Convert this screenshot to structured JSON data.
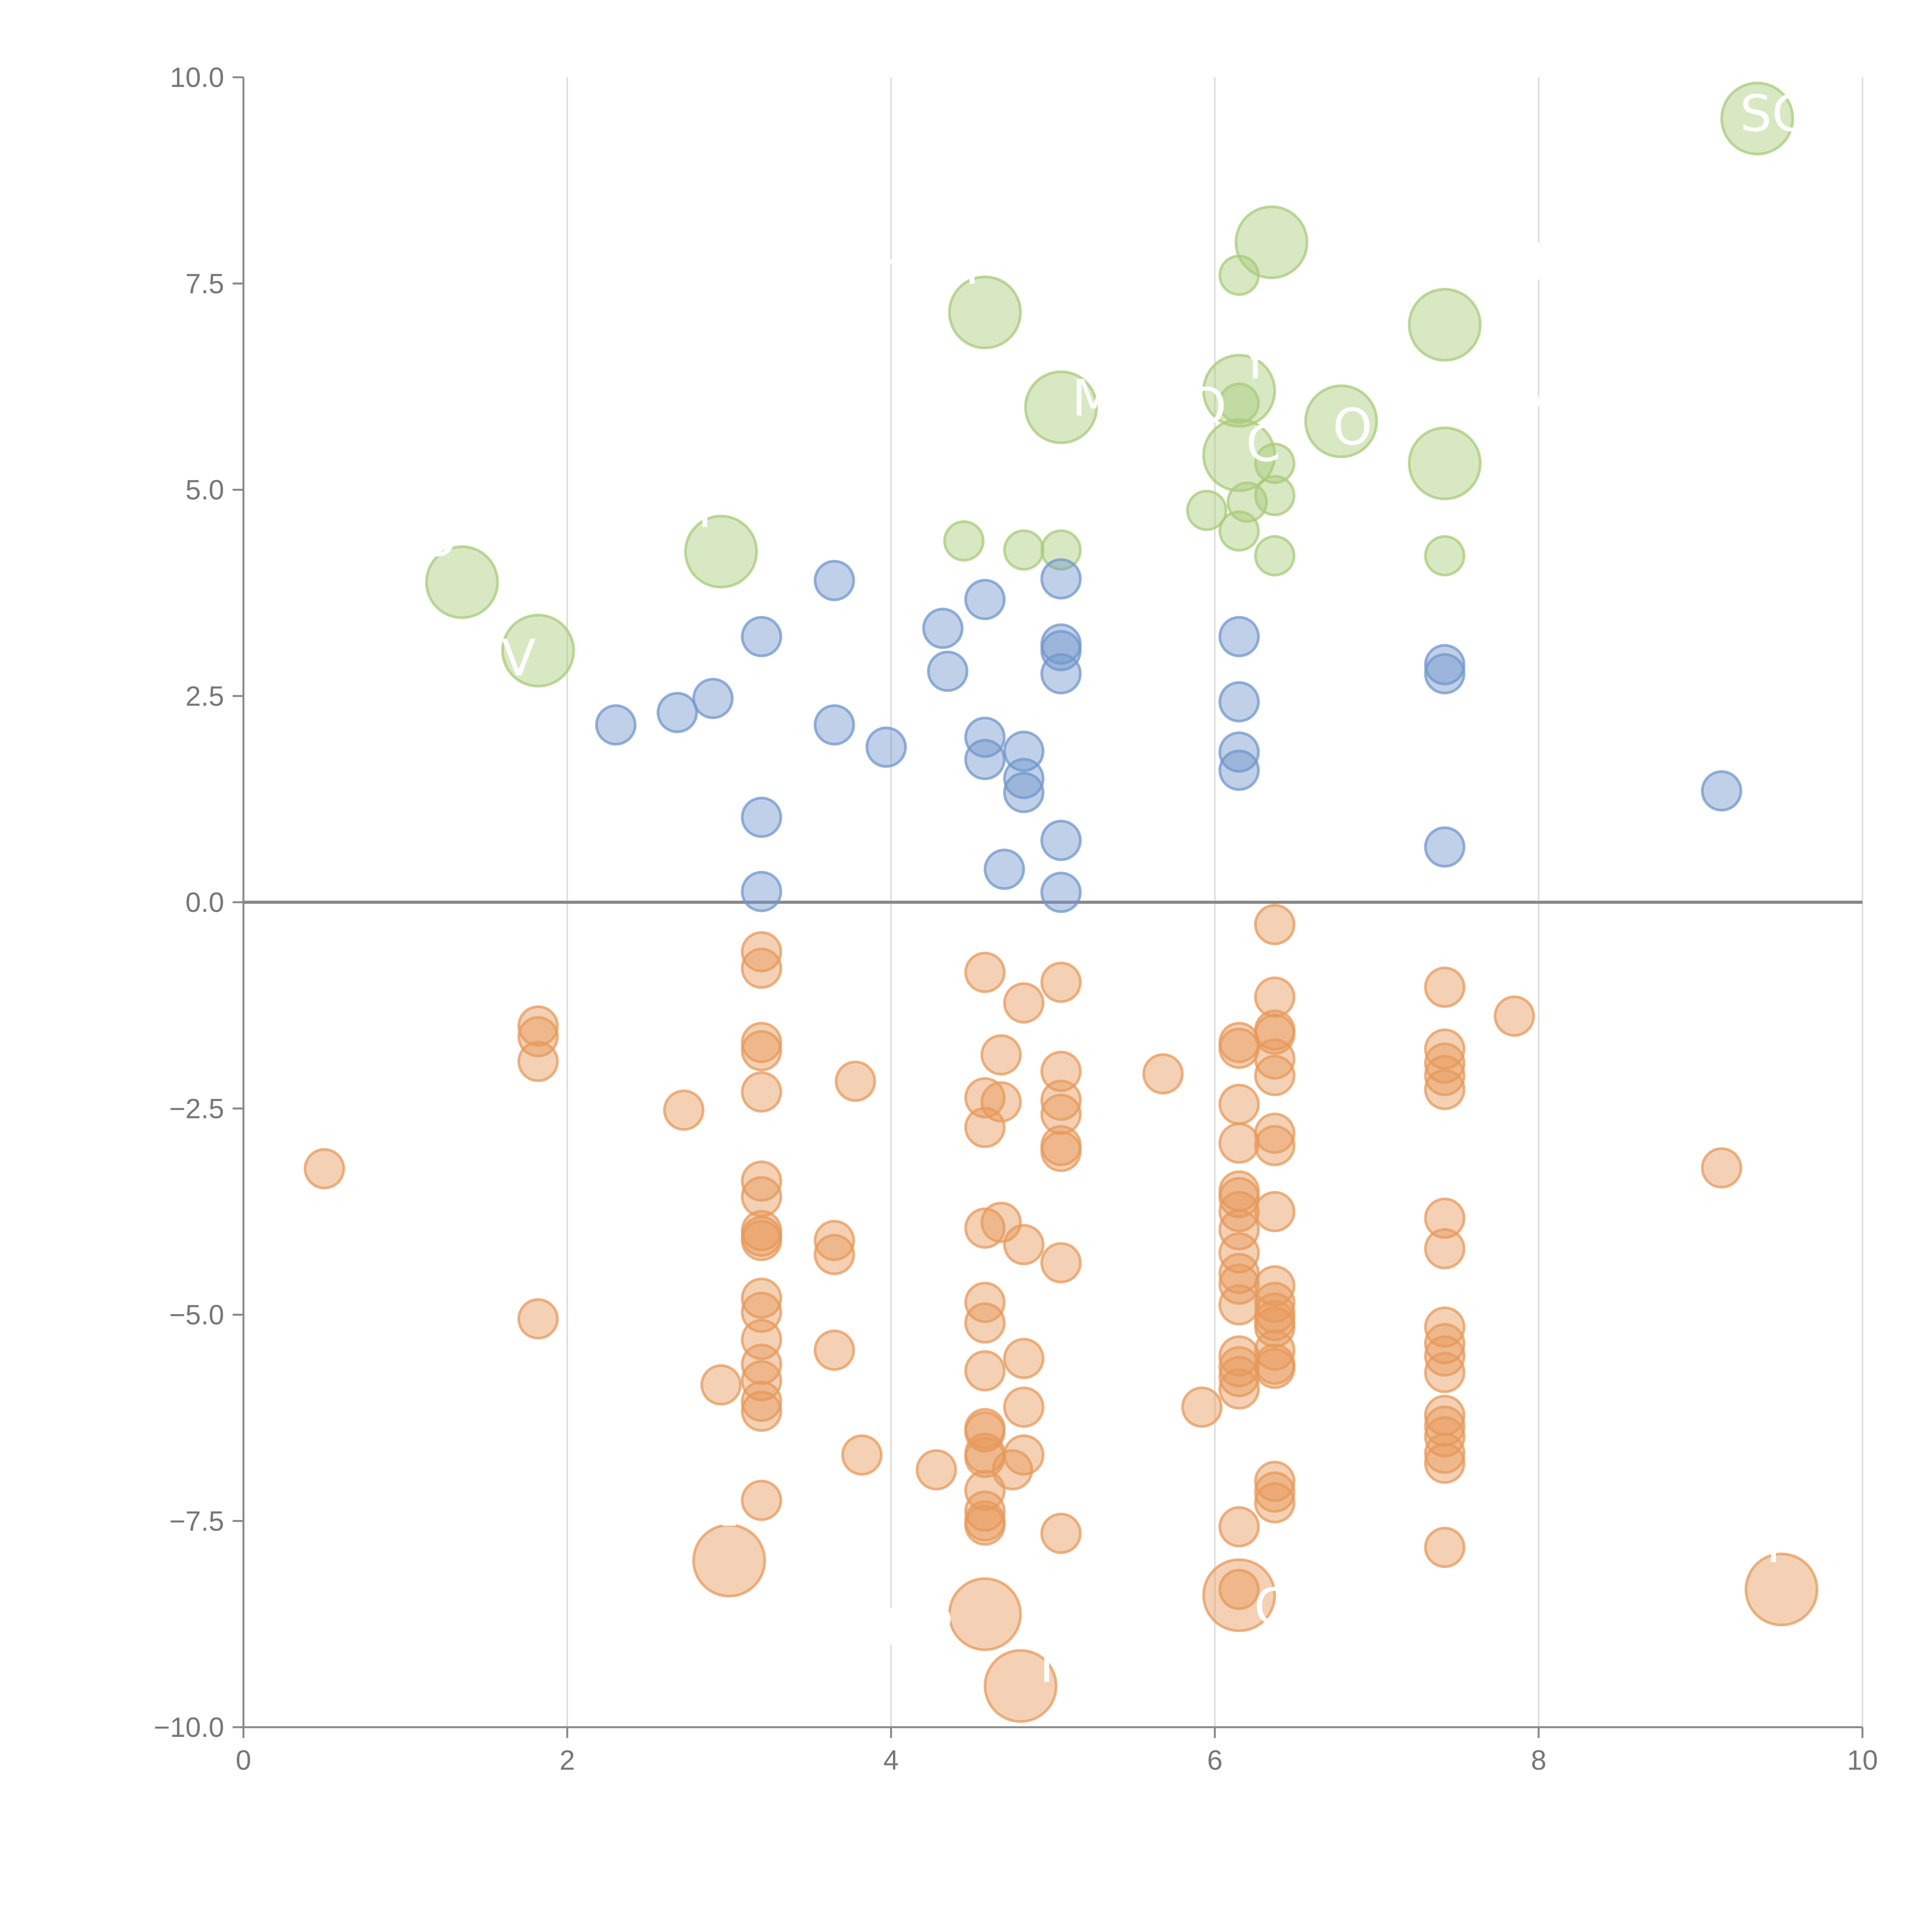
{
  "chart_data": {
    "type": "scatter",
    "title": "",
    "xlabel": "",
    "ylabel": "",
    "xlim": [
      0,
      10
    ],
    "ylim": [
      -10,
      10
    ],
    "x_ticks": [
      0,
      2,
      4,
      6,
      8,
      10
    ],
    "x_tick_labels": [
      "0",
      "2",
      "4",
      "6",
      "8",
      "10"
    ],
    "y_ticks": [
      -10,
      -7.5,
      -5,
      -2.5,
      0,
      2.5,
      5,
      7.5,
      10
    ],
    "y_tick_labels": [
      "−10.0",
      "−7.5",
      "−5.0",
      "−2.5",
      "0.0",
      "2.5",
      "5.0",
      "7.5",
      "10.0"
    ],
    "vertical_grid": true,
    "zero_line": true,
    "colors": {
      "green": "#a9cb7b",
      "blue": "#7197cc",
      "orange": "#e79a5c"
    },
    "series": [
      {
        "name": "green",
        "color": "#a9cb7b",
        "points": [
          {
            "x": 1.35,
            "y": 3.88,
            "size": "large"
          },
          {
            "x": 1.82,
            "y": 3.05,
            "size": "large"
          },
          {
            "x": 2.95,
            "y": 4.25,
            "size": "large"
          },
          {
            "x": 4.45,
            "y": 4.38,
            "size": "small"
          },
          {
            "x": 4.58,
            "y": 7.15,
            "size": "large"
          },
          {
            "x": 4.82,
            "y": 4.27,
            "size": "small"
          },
          {
            "x": 5.05,
            "y": 6.0,
            "size": "large"
          },
          {
            "x": 5.05,
            "y": 4.27,
            "size": "small"
          },
          {
            "x": 5.95,
            "y": 4.75,
            "size": "small"
          },
          {
            "x": 6.15,
            "y": 7.6,
            "size": "small"
          },
          {
            "x": 6.15,
            "y": 6.2,
            "size": "large"
          },
          {
            "x": 6.15,
            "y": 6.05,
            "size": "small"
          },
          {
            "x": 6.15,
            "y": 5.42,
            "size": "large"
          },
          {
            "x": 6.15,
            "y": 4.5,
            "size": "small"
          },
          {
            "x": 6.2,
            "y": 4.85,
            "size": "small"
          },
          {
            "x": 6.35,
            "y": 8.0,
            "size": "large"
          },
          {
            "x": 6.37,
            "y": 5.32,
            "size": "small"
          },
          {
            "x": 6.37,
            "y": 4.93,
            "size": "small"
          },
          {
            "x": 6.37,
            "y": 4.2,
            "size": "small"
          },
          {
            "x": 6.78,
            "y": 5.83,
            "size": "large"
          },
          {
            "x": 7.42,
            "y": 7.0,
            "size": "large"
          },
          {
            "x": 7.42,
            "y": 5.32,
            "size": "large"
          },
          {
            "x": 7.42,
            "y": 4.2,
            "size": "small"
          },
          {
            "x": 9.35,
            "y": 9.5,
            "size": "large"
          }
        ]
      },
      {
        "name": "blue",
        "color": "#7197cc",
        "points": [
          {
            "x": 2.3,
            "y": 2.15
          },
          {
            "x": 2.68,
            "y": 2.3
          },
          {
            "x": 2.9,
            "y": 2.47
          },
          {
            "x": 3.2,
            "y": 3.22
          },
          {
            "x": 3.2,
            "y": 1.03
          },
          {
            "x": 3.2,
            "y": 0.13
          },
          {
            "x": 3.65,
            "y": 3.9
          },
          {
            "x": 3.65,
            "y": 2.15
          },
          {
            "x": 3.97,
            "y": 1.88
          },
          {
            "x": 4.32,
            "y": 3.32
          },
          {
            "x": 4.35,
            "y": 2.8
          },
          {
            "x": 4.58,
            "y": 3.67
          },
          {
            "x": 4.58,
            "y": 2.0
          },
          {
            "x": 4.58,
            "y": 1.73
          },
          {
            "x": 4.7,
            "y": 0.4
          },
          {
            "x": 4.82,
            "y": 1.83
          },
          {
            "x": 4.82,
            "y": 1.5
          },
          {
            "x": 4.82,
            "y": 1.33
          },
          {
            "x": 5.05,
            "y": 3.92
          },
          {
            "x": 5.05,
            "y": 3.13
          },
          {
            "x": 5.05,
            "y": 3.05
          },
          {
            "x": 5.05,
            "y": 2.77
          },
          {
            "x": 5.05,
            "y": 0.75
          },
          {
            "x": 5.05,
            "y": 0.12
          },
          {
            "x": 6.15,
            "y": 3.22
          },
          {
            "x": 6.15,
            "y": 2.43
          },
          {
            "x": 6.15,
            "y": 1.82
          },
          {
            "x": 6.15,
            "y": 1.6
          },
          {
            "x": 7.42,
            "y": 2.88
          },
          {
            "x": 7.42,
            "y": 2.77
          },
          {
            "x": 7.42,
            "y": 0.67
          },
          {
            "x": 9.13,
            "y": 1.35
          }
        ]
      },
      {
        "name": "orange",
        "color": "#e79a5c",
        "points": [
          {
            "x": 0.5,
            "y": -3.23,
            "size": "small"
          },
          {
            "x": 1.82,
            "y": -1.5,
            "size": "small"
          },
          {
            "x": 1.82,
            "y": -1.63,
            "size": "small"
          },
          {
            "x": 1.82,
            "y": -1.93,
            "size": "small"
          },
          {
            "x": 1.82,
            "y": -5.05,
            "size": "small"
          },
          {
            "x": 2.72,
            "y": -2.52,
            "size": "small"
          },
          {
            "x": 2.95,
            "y": -5.85,
            "size": "small"
          },
          {
            "x": 3.0,
            "y": -7.98,
            "size": "large"
          },
          {
            "x": 3.2,
            "y": -0.6,
            "size": "small"
          },
          {
            "x": 3.2,
            "y": -0.8,
            "size": "small"
          },
          {
            "x": 3.2,
            "y": -1.7,
            "size": "small"
          },
          {
            "x": 3.2,
            "y": -1.8,
            "size": "small"
          },
          {
            "x": 3.2,
            "y": -2.3,
            "size": "small"
          },
          {
            "x": 3.2,
            "y": -3.38,
            "size": "small"
          },
          {
            "x": 3.2,
            "y": -3.57,
            "size": "small"
          },
          {
            "x": 3.2,
            "y": -3.98,
            "size": "small"
          },
          {
            "x": 3.2,
            "y": -4.05,
            "size": "small"
          },
          {
            "x": 3.2,
            "y": -4.1,
            "size": "small"
          },
          {
            "x": 3.2,
            "y": -4.8,
            "size": "small"
          },
          {
            "x": 3.2,
            "y": -4.97,
            "size": "small"
          },
          {
            "x": 3.2,
            "y": -5.3,
            "size": "small"
          },
          {
            "x": 3.2,
            "y": -5.6,
            "size": "small"
          },
          {
            "x": 3.2,
            "y": -5.8,
            "size": "small"
          },
          {
            "x": 3.2,
            "y": -6.05,
            "size": "small"
          },
          {
            "x": 3.2,
            "y": -6.17,
            "size": "small"
          },
          {
            "x": 3.2,
            "y": -7.25,
            "size": "small"
          },
          {
            "x": 3.65,
            "y": -4.1,
            "size": "small"
          },
          {
            "x": 3.65,
            "y": -4.27,
            "size": "small"
          },
          {
            "x": 3.65,
            "y": -5.43,
            "size": "small"
          },
          {
            "x": 3.78,
            "y": -2.17,
            "size": "small"
          },
          {
            "x": 3.82,
            "y": -6.7,
            "size": "small"
          },
          {
            "x": 4.28,
            "y": -6.88,
            "size": "small"
          },
          {
            "x": 4.58,
            "y": -0.85,
            "size": "small"
          },
          {
            "x": 4.58,
            "y": -2.37,
            "size": "small"
          },
          {
            "x": 4.58,
            "y": -2.73,
            "size": "small"
          },
          {
            "x": 4.58,
            "y": -3.95,
            "size": "small"
          },
          {
            "x": 4.58,
            "y": -4.85,
            "size": "small"
          },
          {
            "x": 4.58,
            "y": -5.1,
            "size": "small"
          },
          {
            "x": 4.58,
            "y": -5.68,
            "size": "small"
          },
          {
            "x": 4.58,
            "y": -6.38,
            "size": "small"
          },
          {
            "x": 4.58,
            "y": -6.42,
            "size": "small"
          },
          {
            "x": 4.58,
            "y": -6.68,
            "size": "small"
          },
          {
            "x": 4.58,
            "y": -6.73,
            "size": "small"
          },
          {
            "x": 4.58,
            "y": -7.13,
            "size": "small"
          },
          {
            "x": 4.58,
            "y": -7.38,
            "size": "small"
          },
          {
            "x": 4.58,
            "y": -7.5,
            "size": "small"
          },
          {
            "x": 4.58,
            "y": -7.55,
            "size": "small"
          },
          {
            "x": 4.58,
            "y": -8.63,
            "size": "large"
          },
          {
            "x": 4.68,
            "y": -1.85,
            "size": "small"
          },
          {
            "x": 4.68,
            "y": -2.42,
            "size": "small"
          },
          {
            "x": 4.68,
            "y": -3.88,
            "size": "small"
          },
          {
            "x": 4.75,
            "y": -6.88,
            "size": "small"
          },
          {
            "x": 4.8,
            "y": -9.5,
            "size": "large"
          },
          {
            "x": 4.82,
            "y": -1.22,
            "size": "small"
          },
          {
            "x": 4.82,
            "y": -4.15,
            "size": "small"
          },
          {
            "x": 4.82,
            "y": -5.53,
            "size": "small"
          },
          {
            "x": 4.82,
            "y": -6.12,
            "size": "small"
          },
          {
            "x": 4.82,
            "y": -6.7,
            "size": "small"
          },
          {
            "x": 5.05,
            "y": -0.97,
            "size": "small"
          },
          {
            "x": 5.05,
            "y": -2.05,
            "size": "small"
          },
          {
            "x": 5.05,
            "y": -2.4,
            "size": "small"
          },
          {
            "x": 5.05,
            "y": -2.57,
            "size": "small"
          },
          {
            "x": 5.05,
            "y": -2.95,
            "size": "small"
          },
          {
            "x": 5.05,
            "y": -3.02,
            "size": "small"
          },
          {
            "x": 5.05,
            "y": -4.37,
            "size": "small"
          },
          {
            "x": 5.05,
            "y": -7.65,
            "size": "small"
          },
          {
            "x": 5.68,
            "y": -2.08,
            "size": "small"
          },
          {
            "x": 5.92,
            "y": -6.12,
            "size": "small"
          },
          {
            "x": 6.15,
            "y": -1.7,
            "size": "small"
          },
          {
            "x": 6.15,
            "y": -1.77,
            "size": "small"
          },
          {
            "x": 6.15,
            "y": -2.45,
            "size": "small"
          },
          {
            "x": 6.15,
            "y": -2.92,
            "size": "small"
          },
          {
            "x": 6.15,
            "y": -3.5,
            "size": "small"
          },
          {
            "x": 6.15,
            "y": -3.58,
            "size": "small"
          },
          {
            "x": 6.15,
            "y": -3.75,
            "size": "small"
          },
          {
            "x": 6.15,
            "y": -3.97,
            "size": "small"
          },
          {
            "x": 6.15,
            "y": -4.25,
            "size": "small"
          },
          {
            "x": 6.15,
            "y": -4.5,
            "size": "small"
          },
          {
            "x": 6.15,
            "y": -4.63,
            "size": "small"
          },
          {
            "x": 6.15,
            "y": -4.88,
            "size": "small"
          },
          {
            "x": 6.15,
            "y": -5.5,
            "size": "small"
          },
          {
            "x": 6.15,
            "y": -5.63,
            "size": "small"
          },
          {
            "x": 6.15,
            "y": -5.75,
            "size": "small"
          },
          {
            "x": 6.15,
            "y": -5.9,
            "size": "small"
          },
          {
            "x": 6.15,
            "y": -7.57,
            "size": "small"
          },
          {
            "x": 6.15,
            "y": -8.33,
            "size": "small"
          },
          {
            "x": 6.15,
            "y": -8.4,
            "size": "large"
          },
          {
            "x": 6.37,
            "y": -0.27,
            "size": "small"
          },
          {
            "x": 6.37,
            "y": -1.15,
            "size": "small"
          },
          {
            "x": 6.37,
            "y": -1.55,
            "size": "small"
          },
          {
            "x": 6.37,
            "y": -1.6,
            "size": "small"
          },
          {
            "x": 6.37,
            "y": -1.9,
            "size": "small"
          },
          {
            "x": 6.37,
            "y": -2.1,
            "size": "small"
          },
          {
            "x": 6.37,
            "y": -2.8,
            "size": "small"
          },
          {
            "x": 6.37,
            "y": -2.95,
            "size": "small"
          },
          {
            "x": 6.37,
            "y": -3.75,
            "size": "small"
          },
          {
            "x": 6.37,
            "y": -4.65,
            "size": "small"
          },
          {
            "x": 6.37,
            "y": -4.85,
            "size": "small"
          },
          {
            "x": 6.37,
            "y": -4.98,
            "size": "small"
          },
          {
            "x": 6.37,
            "y": -5.07,
            "size": "small"
          },
          {
            "x": 6.37,
            "y": -5.15,
            "size": "small"
          },
          {
            "x": 6.37,
            "y": -5.43,
            "size": "small"
          },
          {
            "x": 6.37,
            "y": -5.6,
            "size": "small"
          },
          {
            "x": 6.37,
            "y": -5.65,
            "size": "small"
          },
          {
            "x": 6.37,
            "y": -7.02,
            "size": "small"
          },
          {
            "x": 6.37,
            "y": -7.15,
            "size": "small"
          },
          {
            "x": 6.37,
            "y": -7.28,
            "size": "small"
          },
          {
            "x": 7.42,
            "y": -1.03,
            "size": "small"
          },
          {
            "x": 7.42,
            "y": -1.78,
            "size": "small"
          },
          {
            "x": 7.42,
            "y": -1.95,
            "size": "small"
          },
          {
            "x": 7.42,
            "y": -2.1,
            "size": "small"
          },
          {
            "x": 7.42,
            "y": -2.27,
            "size": "small"
          },
          {
            "x": 7.42,
            "y": -3.83,
            "size": "small"
          },
          {
            "x": 7.42,
            "y": -4.2,
            "size": "small"
          },
          {
            "x": 7.42,
            "y": -5.15,
            "size": "small"
          },
          {
            "x": 7.42,
            "y": -5.35,
            "size": "small"
          },
          {
            "x": 7.42,
            "y": -5.5,
            "size": "small"
          },
          {
            "x": 7.42,
            "y": -5.7,
            "size": "small"
          },
          {
            "x": 7.42,
            "y": -6.22,
            "size": "small"
          },
          {
            "x": 7.42,
            "y": -6.35,
            "size": "small"
          },
          {
            "x": 7.42,
            "y": -6.48,
            "size": "small"
          },
          {
            "x": 7.42,
            "y": -6.68,
            "size": "small"
          },
          {
            "x": 7.42,
            "y": -6.8,
            "size": "small"
          },
          {
            "x": 7.42,
            "y": -7.82,
            "size": "small"
          },
          {
            "x": 7.85,
            "y": -1.38,
            "size": "small"
          },
          {
            "x": 9.13,
            "y": -3.22,
            "size": "small"
          },
          {
            "x": 9.5,
            "y": -8.33,
            "size": "large"
          }
        ]
      }
    ],
    "annotations": [
      {
        "text": "O",
        "x": 1.2,
        "y": 4.2
      },
      {
        "text": "V",
        "x": 1.7,
        "y": 2.75
      },
      {
        "text": "T",
        "x": 2.85,
        "y": 4.55
      },
      {
        "text": "-",
        "x": 4.0,
        "y": 7.6
      },
      {
        "text": "Y",
        "x": 4.5,
        "y": 7.5
      },
      {
        "text": "M",
        "x": 5.25,
        "y": 5.9
      },
      {
        "text": "Y",
        "x": 6.25,
        "y": 6.35
      },
      {
        "text": "O",
        "x": 5.95,
        "y": 5.8
      },
      {
        "text": "C",
        "x": 6.3,
        "y": 5.35
      },
      {
        "text": "O",
        "x": 6.85,
        "y": 5.55
      },
      {
        "text": "I",
        "x": 8.0,
        "y": 7.55
      },
      {
        "text": "N",
        "x": 8.0,
        "y": 5.85
      },
      {
        "text": "SC",
        "x": 9.45,
        "y": 9.35
      },
      {
        "text": "-",
        "x": 3.0,
        "y": -7.7
      },
      {
        "text": "R",
        "x": 4.3,
        "y": -9.0
      },
      {
        "text": "E",
        "x": 4.05,
        "y": -9.0
      },
      {
        "text": "M",
        "x": 5.05,
        "y": -9.45
      },
      {
        "text": "C",
        "x": 6.35,
        "y": -8.75
      },
      {
        "text": "Y",
        "x": 9.45,
        "y": -8.0
      }
    ]
  }
}
